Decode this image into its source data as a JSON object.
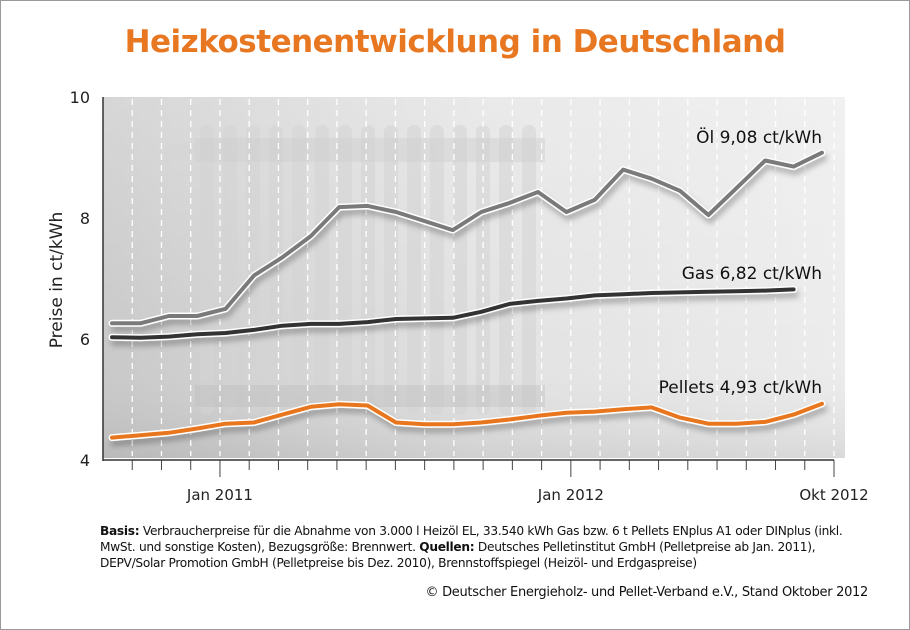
{
  "chart_data": {
    "type": "line",
    "title": "Heizkostenentwicklung in Deutschland",
    "ylabel": "Preise in ct/kWh",
    "xlabel": "",
    "ylim": [
      4,
      10
    ],
    "yticks": [
      "4",
      "6",
      "8",
      "10"
    ],
    "x": [
      "Sep 2010",
      "Okt 2010",
      "Nov 2010",
      "Dez 2010",
      "Jan 2011",
      "Feb 2011",
      "Mär 2011",
      "Apr 2011",
      "Mai 2011",
      "Jun 2011",
      "Jul 2011",
      "Aug 2011",
      "Sep 2011",
      "Okt 2011",
      "Nov 2011",
      "Dez 2011",
      "Jan 2012",
      "Feb 2012",
      "Mär 2012",
      "Apr 2012",
      "Mai 2012",
      "Jun 2012",
      "Jul 2012",
      "Aug 2012",
      "Sep 2012",
      "Okt 2012"
    ],
    "xtick_labels": [
      "Jan 2011",
      "Jan 2012",
      "Okt 2012"
    ],
    "grid": "vertical dashed monthly",
    "series": [
      {
        "name": "Öl",
        "label": "Öl  9,08 ct/kWh",
        "color": "#7a7a7a",
        "values": [
          6.26,
          6.26,
          6.38,
          6.38,
          6.5,
          7.05,
          7.35,
          7.7,
          8.18,
          8.2,
          8.1,
          7.95,
          7.8,
          8.1,
          8.25,
          8.43,
          8.1,
          8.3,
          8.8,
          8.65,
          8.45,
          8.05,
          8.5,
          8.95,
          8.85,
          9.08
        ]
      },
      {
        "name": "Gas",
        "label": "Gas  6,82 ct/kWh",
        "color": "#333333",
        "values": [
          6.03,
          6.02,
          6.04,
          6.08,
          6.1,
          6.15,
          6.22,
          6.25,
          6.25,
          6.28,
          6.33,
          6.34,
          6.35,
          6.45,
          6.58,
          6.63,
          6.67,
          6.72,
          6.74,
          6.76,
          6.77,
          6.78,
          6.79,
          6.8,
          6.82,
          null
        ]
      },
      {
        "name": "Pellets",
        "label": "Pellets  4,93 ct/kWh",
        "color": "#e8761e",
        "values": [
          4.37,
          4.41,
          4.45,
          4.52,
          4.6,
          4.62,
          4.75,
          4.88,
          4.92,
          4.9,
          4.62,
          4.59,
          4.59,
          4.62,
          4.67,
          4.73,
          4.78,
          4.8,
          4.84,
          4.87,
          4.7,
          4.6,
          4.6,
          4.63,
          4.75,
          4.93
        ]
      }
    ]
  },
  "notes": {
    "basis_label": "Basis:",
    "basis_text": " Verbraucherpreise für die Abnahme von 3.000 l Heizöl EL, 33.540 kWh Gas bzw. 6 t Pellets ENplus A1 oder DINplus (inkl. MwSt. und sonstige Kosten), Bezugsgröße: Brennwert. ",
    "sources_label": "Quellen:",
    "sources_text": " Deutsches Pelletinstitut GmbH (Pelletpreise ab Jan. 2011), DEPV/Solar Promotion GmbH (Pelletpreise bis Dez. 2010), Brennstoffspiegel (Heizöl- und Erdgaspreise)",
    "copyright": "© Deutscher Energieholz- und Pellet-Verband e.V., Stand Oktober 2012"
  }
}
